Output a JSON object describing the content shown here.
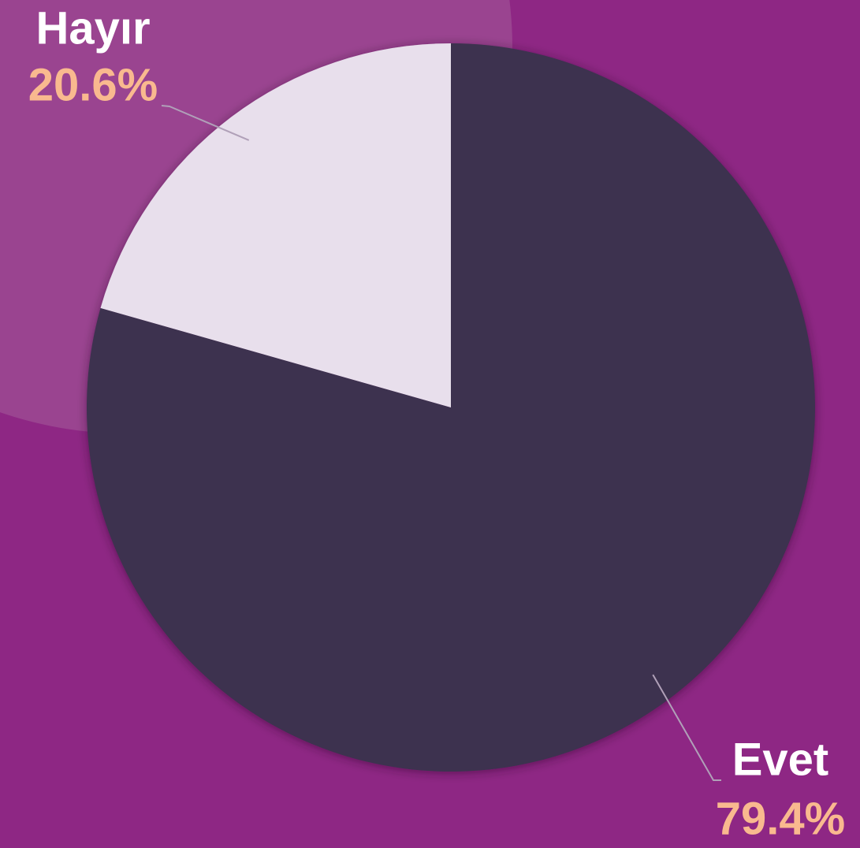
{
  "chart_data": {
    "type": "pie",
    "categories": [
      "Evet",
      "Hayır"
    ],
    "values": [
      79.4,
      20.6
    ],
    "value_labels": [
      "79.4%",
      "20.6%"
    ],
    "colors": [
      "#3d3050",
      "#e8dfec"
    ]
  }
}
